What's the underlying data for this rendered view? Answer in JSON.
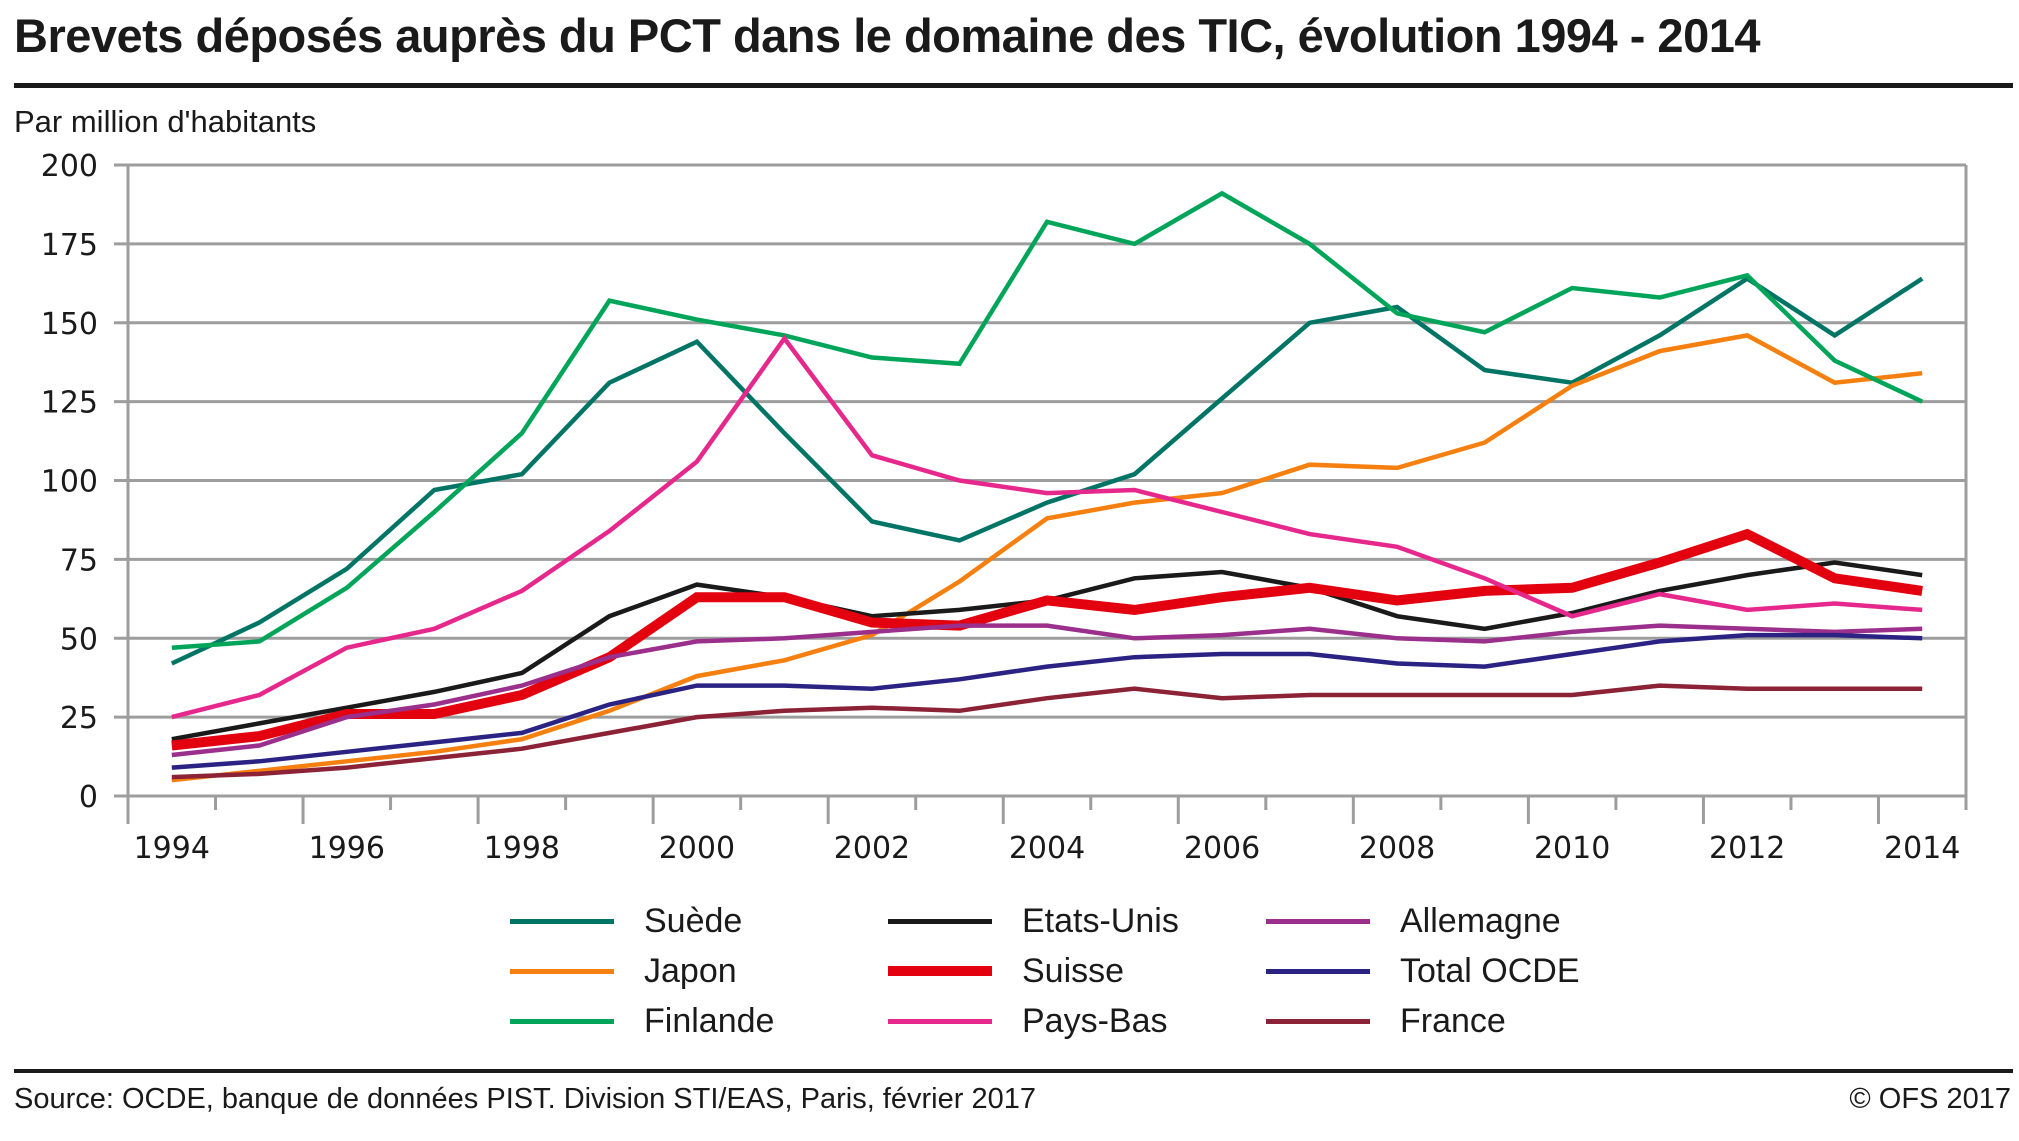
{
  "header": {
    "title": "Brevets déposés auprès du PCT dans le domaine des TIC, évolution 1994 - 2014",
    "unit_label": "Par million d'habitants"
  },
  "footer": {
    "source": "Source: OCDE, banque de données PIST. Division STI/EAS, Paris, février  2017",
    "copyright": "© OFS 2017"
  },
  "chart_data": {
    "type": "line",
    "title": "Brevets déposés auprès du PCT dans le domaine des TIC, évolution 1994 - 2014",
    "xlabel": "",
    "ylabel": "Par million d'habitants",
    "ylim": [
      0,
      200
    ],
    "yticks": [
      0,
      25,
      50,
      75,
      100,
      125,
      150,
      175,
      200
    ],
    "ytick_labels": [
      "0",
      "25",
      "50",
      "75",
      "100",
      "125",
      "150",
      "175",
      "200"
    ],
    "x": [
      1994,
      1995,
      1996,
      1997,
      1998,
      1999,
      2000,
      2001,
      2002,
      2003,
      2004,
      2005,
      2006,
      2007,
      2008,
      2009,
      2010,
      2011,
      2012,
      2013,
      2014
    ],
    "xtick_labels": [
      "1994",
      "1996",
      "1998",
      "2000",
      "2002",
      "2004",
      "2006",
      "2008",
      "2010",
      "2012",
      "2014"
    ],
    "grid": "horizontal",
    "legend_position": "bottom",
    "series": [
      {
        "name": "Suède",
        "color": "#007565",
        "thick": false,
        "values": [
          42,
          55,
          72,
          97,
          102,
          131,
          144,
          115,
          87,
          81,
          93,
          102,
          126,
          150,
          155,
          135,
          131,
          146,
          164,
          146,
          164
        ]
      },
      {
        "name": "Japon",
        "color": "#f57f0f",
        "thick": false,
        "values": [
          5,
          8,
          11,
          14,
          18,
          27,
          38,
          43,
          51,
          68,
          88,
          93,
          96,
          105,
          104,
          112,
          130,
          141,
          146,
          131,
          134
        ]
      },
      {
        "name": "Finlande",
        "color": "#00a55a",
        "thick": false,
        "values": [
          47,
          49,
          66,
          90,
          115,
          157,
          151,
          146,
          139,
          137,
          182,
          175,
          191,
          175,
          153,
          147,
          161,
          158,
          165,
          138,
          125
        ]
      },
      {
        "name": "Etats-Unis",
        "color": "#1a1a1a",
        "thick": false,
        "values": [
          18,
          23,
          28,
          33,
          39,
          57,
          67,
          63,
          57,
          59,
          62,
          69,
          71,
          66,
          57,
          53,
          58,
          65,
          70,
          74,
          70
        ]
      },
      {
        "name": "Suisse",
        "color": "#e3000f",
        "thick": true,
        "values": [
          16,
          19,
          26,
          26,
          32,
          44,
          63,
          63,
          55,
          54,
          62,
          59,
          63,
          66,
          62,
          65,
          66,
          74,
          83,
          69,
          65
        ]
      },
      {
        "name": "Pays-Bas",
        "color": "#e6288c",
        "thick": false,
        "values": [
          25,
          32,
          47,
          53,
          65,
          84,
          106,
          145,
          108,
          100,
          96,
          97,
          90,
          83,
          79,
          69,
          57,
          64,
          59,
          61,
          59
        ]
      },
      {
        "name": "Allemagne",
        "color": "#9b2f8c",
        "thick": false,
        "values": [
          13,
          16,
          25,
          29,
          35,
          44,
          49,
          50,
          52,
          54,
          54,
          50,
          51,
          53,
          50,
          49,
          52,
          54,
          53,
          52,
          53
        ]
      },
      {
        "name": "Total OCDE",
        "color": "#2a2383",
        "thick": false,
        "values": [
          9,
          11,
          14,
          17,
          20,
          29,
          35,
          35,
          34,
          37,
          41,
          44,
          45,
          45,
          42,
          41,
          45,
          49,
          51,
          51,
          50
        ]
      },
      {
        "name": "France",
        "color": "#8c2236",
        "thick": false,
        "values": [
          6,
          7,
          9,
          12,
          15,
          20,
          25,
          27,
          28,
          27,
          31,
          34,
          31,
          32,
          32,
          32,
          32,
          35,
          34,
          34,
          34
        ]
      }
    ]
  }
}
